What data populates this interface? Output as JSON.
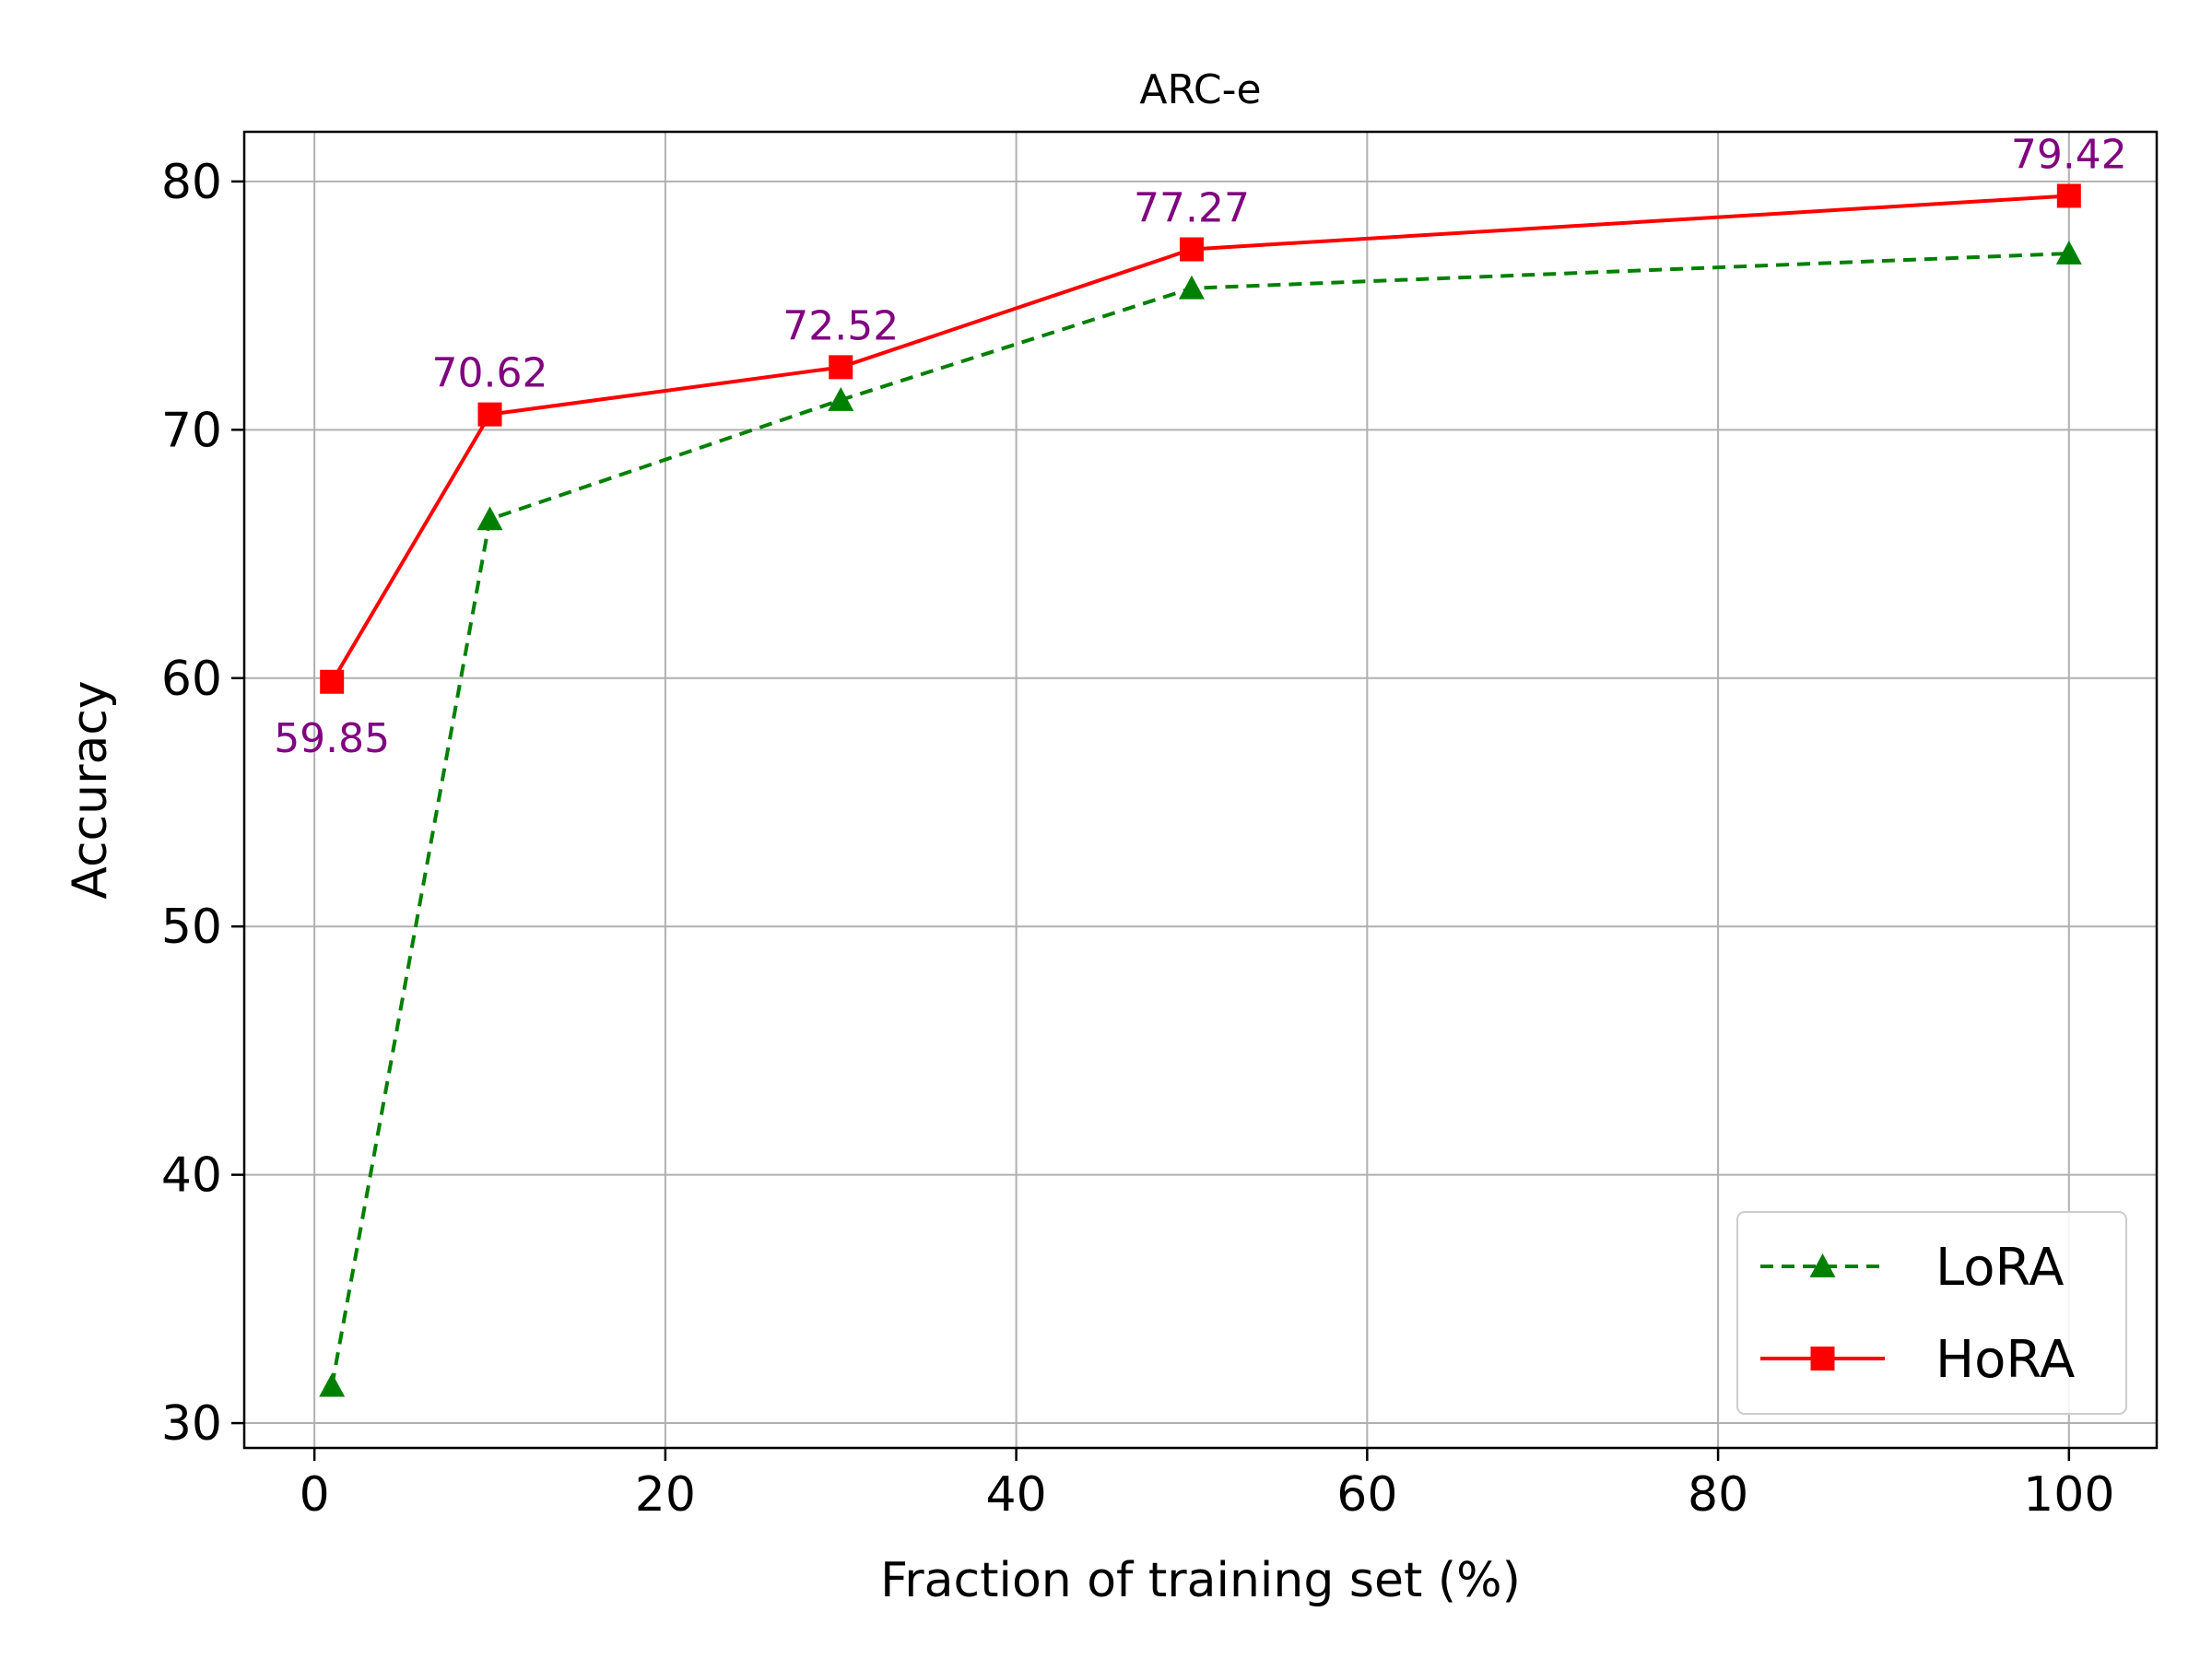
{
  "chart_data": {
    "type": "line",
    "title": "ARC-e",
    "xlabel": "Fraction of training set (%)",
    "ylabel": "Accuracy",
    "xlim": [
      -4,
      105
    ],
    "ylim": [
      29,
      82
    ],
    "xticks": [
      0,
      20,
      40,
      60,
      80,
      100
    ],
    "yticks": [
      30,
      40,
      50,
      60,
      70,
      80
    ],
    "grid": true,
    "legend_position": "bottom-right",
    "x": [
      1,
      10,
      30,
      50,
      100
    ],
    "series": [
      {
        "name": "LoRA",
        "values": [
          31.5,
          66.4,
          71.2,
          75.7,
          77.1
        ],
        "color": "#008000",
        "line_style": "dashed",
        "marker": "triangle"
      },
      {
        "name": "HoRA",
        "values": [
          59.85,
          70.62,
          72.52,
          77.27,
          79.42
        ],
        "color": "#ff0000",
        "line_style": "solid",
        "marker": "square"
      }
    ],
    "annotations": {
      "series": "HoRA",
      "color": "#800080",
      "labels": [
        "59.85",
        "70.62",
        "72.52",
        "77.27",
        "79.42"
      ],
      "placement": [
        "below",
        "above",
        "above",
        "above",
        "above"
      ]
    }
  }
}
